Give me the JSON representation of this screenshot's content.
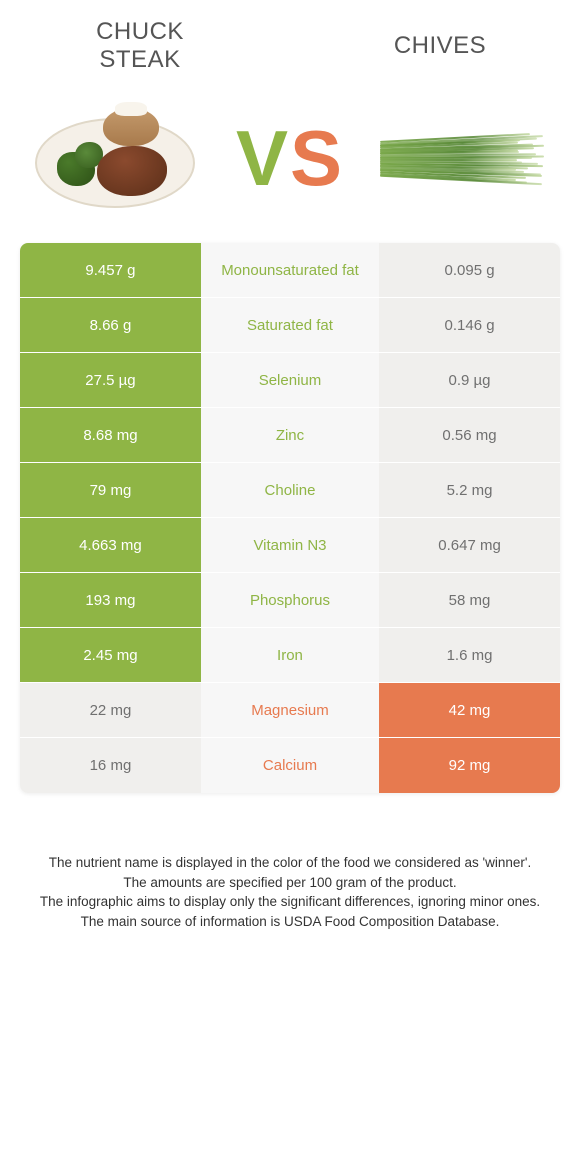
{
  "title_left": "Chuck\nSteak",
  "title_right": "Chives",
  "vs_v": "V",
  "vs_s": "S",
  "colors": {
    "left": "#8fb545",
    "right": "#e77a4f",
    "lose_bg": "#f0efed",
    "lose_text": "#707070",
    "mid_bg": "#f7f7f7"
  },
  "rows": [
    {
      "left": "9.457 g",
      "label": "Monounsaturated fat",
      "right": "0.095 g",
      "winner": "left"
    },
    {
      "left": "8.66 g",
      "label": "Saturated fat",
      "right": "0.146 g",
      "winner": "left"
    },
    {
      "left": "27.5 µg",
      "label": "Selenium",
      "right": "0.9 µg",
      "winner": "left"
    },
    {
      "left": "8.68 mg",
      "label": "Zinc",
      "right": "0.56 mg",
      "winner": "left"
    },
    {
      "left": "79 mg",
      "label": "Choline",
      "right": "5.2 mg",
      "winner": "left"
    },
    {
      "left": "4.663 mg",
      "label": "Vitamin N3",
      "right": "0.647 mg",
      "winner": "left"
    },
    {
      "left": "193 mg",
      "label": "Phosphorus",
      "right": "58 mg",
      "winner": "left"
    },
    {
      "left": "2.45 mg",
      "label": "Iron",
      "right": "1.6 mg",
      "winner": "left"
    },
    {
      "left": "22 mg",
      "label": "Magnesium",
      "right": "42 mg",
      "winner": "right"
    },
    {
      "left": "16 mg",
      "label": "Calcium",
      "right": "92 mg",
      "winner": "right"
    }
  ],
  "footer": [
    "The nutrient name is displayed in the color of the food we considered as 'winner'.",
    "The amounts are specified per 100 gram of the product.",
    "The infographic aims to display only the significant differences, ignoring minor ones.",
    "The main source of information is USDA Food Composition Database."
  ]
}
